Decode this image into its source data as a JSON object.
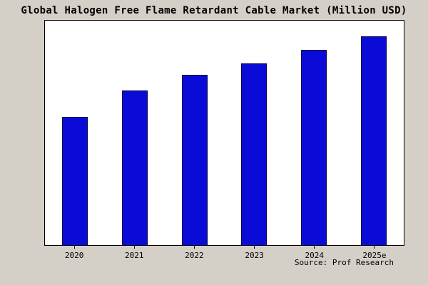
{
  "chart_data": {
    "type": "bar",
    "title": "Global Halogen Free Flame Retardant Cable Market (Million USD)",
    "categories": [
      "2020",
      "2021",
      "2022",
      "2023",
      "2024",
      "2025e"
    ],
    "values": [
      57,
      69,
      76,
      81,
      87,
      93
    ],
    "xlabel": "",
    "ylabel": "",
    "ylim": [
      0,
      100
    ],
    "grid": false,
    "legend": false
  },
  "source": "Source: Prof Research",
  "colors": {
    "background": "#d4d0c8",
    "plot_background": "#ffffff",
    "bar_fill": "#0b0bd8",
    "bar_border": "#000040",
    "axis": "#000000",
    "text": "#000000"
  }
}
